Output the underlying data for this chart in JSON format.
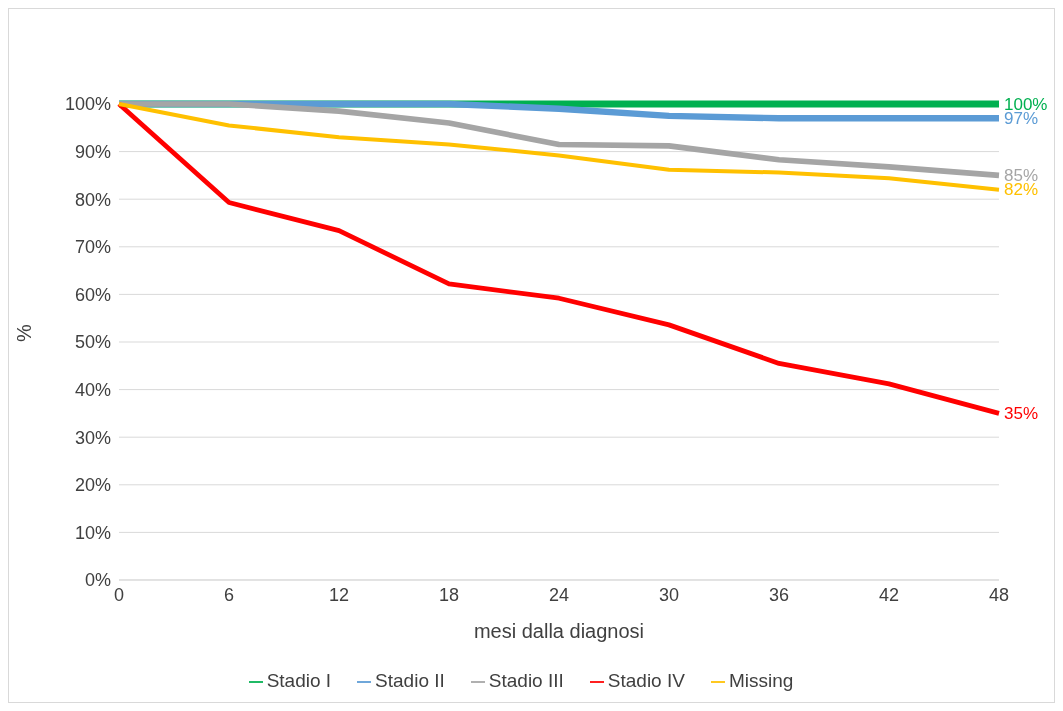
{
  "chart_data": {
    "type": "line",
    "xlabel": "mesi dalla diagnosi",
    "ylabel": "%",
    "x": [
      0,
      6,
      12,
      18,
      24,
      30,
      36,
      42,
      48
    ],
    "series": [
      {
        "name": "Stadio I",
        "color": "#00b050",
        "values": [
          100,
          100,
          100,
          100,
          100,
          100,
          100,
          100,
          100
        ],
        "value_labels": [
          null,
          null,
          null,
          null,
          null,
          null,
          null,
          null,
          "100%"
        ]
      },
      {
        "name": "Stadio II",
        "color": "#5b9bd5",
        "values": [
          100,
          100,
          100,
          100,
          99,
          97.5,
          97,
          97,
          97
        ],
        "value_labels": [
          null,
          null,
          null,
          null,
          null,
          null,
          null,
          null,
          "97%"
        ]
      },
      {
        "name": "Stadio III",
        "color": "#a5a5a5",
        "values": [
          100,
          100,
          98.5,
          96,
          91.5,
          91.2,
          88.3,
          86.8,
          85
        ],
        "value_labels": [
          null,
          null,
          null,
          null,
          null,
          null,
          null,
          null,
          "85%"
        ]
      },
      {
        "name": "Stadio IV",
        "color": "#ff0000",
        "values": [
          100,
          79.3,
          73.4,
          62.2,
          59.2,
          53.6,
          45.5,
          41.2,
          35
        ],
        "value_labels": [
          null,
          null,
          null,
          null,
          null,
          null,
          null,
          null,
          "35%"
        ]
      },
      {
        "name": "Missing",
        "color": "#ffc000",
        "values": [
          100,
          95.5,
          93,
          91.5,
          89.2,
          86.2,
          85.6,
          84.4,
          82
        ],
        "value_labels": [
          null,
          null,
          null,
          null,
          null,
          null,
          null,
          null,
          "82%"
        ]
      }
    ],
    "xlim": [
      0,
      48
    ],
    "xticks": [
      0,
      6,
      12,
      18,
      24,
      30,
      36,
      42,
      48
    ],
    "ylim": [
      0,
      100
    ],
    "yticks": [
      {
        "value": 0,
        "label": "0%"
      },
      {
        "value": 10,
        "label": "10%"
      },
      {
        "value": 20,
        "label": "20%"
      },
      {
        "value": 30,
        "label": "30%"
      },
      {
        "value": 40,
        "label": "40%"
      },
      {
        "value": 50,
        "label": "50%"
      },
      {
        "value": 60,
        "label": "60%"
      },
      {
        "value": 70,
        "label": "70%"
      },
      {
        "value": 80,
        "label": "80%"
      },
      {
        "value": 90,
        "label": "90%"
      },
      {
        "value": 100,
        "label": "100%"
      }
    ],
    "grid": "y",
    "legend": "bottom",
    "marker": "none",
    "line_style": "solid"
  }
}
